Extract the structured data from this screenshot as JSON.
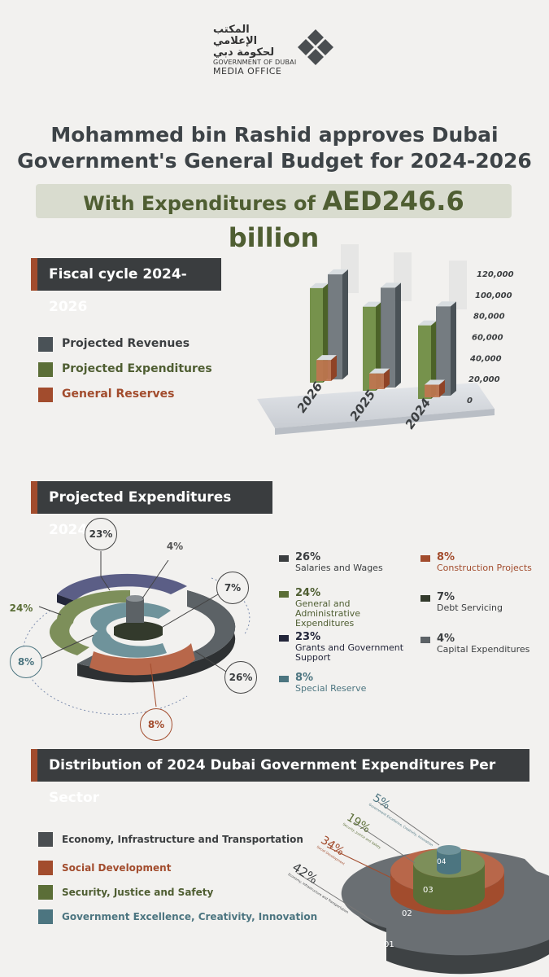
{
  "logo": {
    "arabic": "المكتب الإعلامي لحكومة دبي",
    "line1": "GOVERNMENT OF DUBAI",
    "line2": "MEDIA OFFICE"
  },
  "headline": {
    "line1": "Mohammed bin Rashid approves Dubai",
    "line2": "Government's General Budget for 2024-2026",
    "sub_prefix": "With Expenditures of ",
    "sub_amount": "AED246.6 billion"
  },
  "sections": {
    "fiscal": "Fiscal cycle 2024-2026",
    "projected": "Projected Expenditures 2024",
    "distribution": "Distribution of 2024 Dubai Government Expenditures Per Sector"
  },
  "colors": {
    "revenues": "#4a5257",
    "expenditures": "#5b6e37",
    "reserves": "#a24c2d",
    "grants": "#23263a",
    "special": "#4c7580",
    "debt": "#333a2c",
    "capital": "#5c6266",
    "accent": "#a24c2d"
  },
  "chart_data": [
    {
      "type": "bar",
      "title": "Fiscal cycle 2024-2026",
      "categories": [
        "2026",
        "2025",
        "2024"
      ],
      "series": [
        {
          "name": "Projected Expenditures",
          "values": [
            90000,
            80000,
            70000
          ]
        },
        {
          "name": "Projected Revenues",
          "values": [
            100000,
            95000,
            85000
          ]
        },
        {
          "name": "General Reserves",
          "values": [
            20000,
            15000,
            12000
          ]
        }
      ],
      "ylim": [
        0,
        120000
      ],
      "yticks": [
        "120,000",
        "100,000",
        "80,000",
        "60,000",
        "40,000",
        "20,000",
        "0"
      ],
      "legend": "left"
    },
    {
      "type": "pie",
      "title": "Projected Expenditures 2024",
      "slices": [
        {
          "pct": "26%",
          "value": 26,
          "label": "Salaries and Wages",
          "color": "#3b3e40"
        },
        {
          "pct": "24%",
          "value": 24,
          "label": "General and Administrative Expenditures",
          "color": "#5b6e37"
        },
        {
          "pct": "23%",
          "value": 23,
          "label": "Grants and Government Support",
          "color": "#23263a"
        },
        {
          "pct": "8%",
          "value": 8,
          "label": "Special Reserve",
          "color": "#4c7580"
        },
        {
          "pct": "8%",
          "value": 8,
          "label": "Construction Projects",
          "color": "#a24c2d"
        },
        {
          "pct": "7%",
          "value": 7,
          "label": "Debt Servicing",
          "color": "#333a2c"
        },
        {
          "pct": "4%",
          "value": 4,
          "label": "Capital Expenditures",
          "color": "#5c6266"
        }
      ]
    },
    {
      "type": "pie",
      "title": "Distribution of 2024 Dubai Government Expenditures Per Sector",
      "slices": [
        {
          "num": "01",
          "pct": "42%",
          "value": 42,
          "label": "Economy, Infrastructure and Transportation",
          "color": "#4a4e51"
        },
        {
          "num": "02",
          "pct": "34%",
          "value": 34,
          "label": "Social Development",
          "color": "#a24c2d"
        },
        {
          "num": "03",
          "pct": "19%",
          "value": 19,
          "label": "Security, Justice and Safety",
          "color": "#5b6e37"
        },
        {
          "num": "04",
          "pct": "5%",
          "value": 5,
          "label": "Government Excellence, Creativity, Innovation",
          "color": "#4c7580"
        }
      ]
    }
  ]
}
